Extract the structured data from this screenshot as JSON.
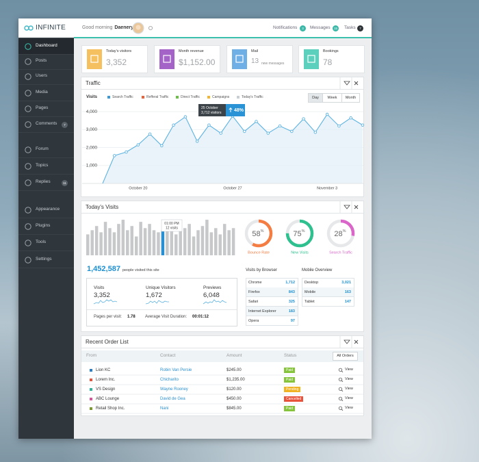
{
  "header": {
    "logo": "INFINITE",
    "greeting": "Good morning",
    "user": "Daenerys",
    "nav": [
      {
        "label": "Notifications",
        "count": "3"
      },
      {
        "label": "Messages",
        "count": "15"
      },
      {
        "label": "Tasks",
        "count": "7"
      }
    ]
  },
  "sidebar": {
    "active": 0,
    "items": [
      {
        "label": "Dashboard"
      },
      {
        "label": "Posts"
      },
      {
        "label": "Users"
      },
      {
        "label": "Media"
      },
      {
        "label": "Pages"
      },
      {
        "label": "Comments",
        "badge": "7"
      },
      {
        "label": "Forum"
      },
      {
        "label": "Topics"
      },
      {
        "label": "Replies",
        "badge": "11"
      },
      {
        "label": "Appearance"
      },
      {
        "label": "Plugins"
      },
      {
        "label": "Tools"
      },
      {
        "label": "Settings"
      }
    ]
  },
  "stats": [
    {
      "label": "Today's visitors",
      "value": "3,352",
      "color": "#f5c160"
    },
    {
      "label": "Month revenue",
      "value": "$1,152.00",
      "color": "#a463c6"
    },
    {
      "label": "Mail",
      "value": "13",
      "note": "new messages",
      "color": "#6eb0e6"
    },
    {
      "label": "Bookings",
      "value": "78",
      "color": "#5ccfbd"
    }
  ],
  "traffic": {
    "title": "Traffic",
    "buttons": [
      "Day",
      "Week",
      "Month"
    ],
    "active_button": 0,
    "chart": {
      "type": "line",
      "y_label": "Visits",
      "legend": [
        {
          "name": "Search Traffic",
          "color": "#3d9ad6"
        },
        {
          "name": "Refferal Traffic",
          "color": "#e8643c"
        },
        {
          "name": "Direct Traffic",
          "color": "#6cc04a"
        },
        {
          "name": "Campaigns",
          "color": "#f2b630"
        },
        {
          "name": "Today's Traffic",
          "color": "#c9ced2"
        }
      ],
      "categories": [
        null,
        null,
        null,
        "October 20",
        null,
        null,
        null,
        null,
        null,
        null,
        null,
        "October 27",
        null,
        null,
        null,
        null,
        null,
        null,
        null,
        "November 3",
        null,
        null,
        null
      ],
      "values": [
        0,
        1550,
        1750,
        2150,
        2750,
        2100,
        3250,
        3712,
        2350,
        3250,
        2800,
        3750,
        2900,
        3450,
        2800,
        3200,
        2900,
        3600,
        2850,
        3850,
        3200,
        3650,
        3250
      ],
      "color": "#5eb3e0",
      "ylim": [
        0,
        4500
      ],
      "yticks": [
        {
          "value": 1000,
          "label": "1,000"
        },
        {
          "value": 2000,
          "label": "2,000"
        },
        {
          "value": 3000,
          "label": "3,000"
        },
        {
          "value": 4000,
          "label": "4,000"
        }
      ],
      "grid": true,
      "tooltip": {
        "date": "25 October",
        "visitors": "3,712 visitors",
        "change": "48%"
      }
    }
  },
  "today": {
    "title": "Today's Visits",
    "chart": {
      "type": "bar",
      "values": [
        10,
        12,
        14,
        11,
        16,
        13,
        11,
        15,
        17,
        12,
        14,
        9,
        16,
        13,
        15,
        12,
        11,
        12,
        17,
        14,
        10,
        16,
        13,
        15,
        9,
        12,
        14,
        17,
        11,
        13,
        10,
        15,
        12,
        13
      ],
      "ylim": [
        0,
        18
      ],
      "color": "#c6c8ca",
      "highlight": 17,
      "highlight_color": "#2a8fd0",
      "tooltip": {
        "time": "01:00 PM",
        "label": "12 visits"
      }
    },
    "unit": "%",
    "gauges": [
      {
        "value": 58,
        "label": "Bounce Rate",
        "color": "#f47d44"
      },
      {
        "value": 75,
        "label": "New Visits",
        "color": "#2fc08f"
      },
      {
        "value": 28,
        "label": "Search Traffic",
        "color": "#d966c8"
      }
    ],
    "total": "1,452,587",
    "total_text": "people visited this site",
    "summary": [
      {
        "label": "Visits",
        "value": "3,352"
      },
      {
        "label": "Unique Visitors",
        "value": "1,672"
      },
      {
        "label": "Previews",
        "value": "6,048"
      }
    ],
    "pages_label": "Pages per visit:",
    "pages_value": "1.78",
    "duration_label": "Average Visit Duration:",
    "duration_value": "00:01:12",
    "browsers": {
      "title": "Visits by Browser",
      "rows": [
        [
          "Chrome",
          "1,712"
        ],
        [
          "Firefox",
          "843"
        ],
        [
          "Safari",
          "325"
        ],
        [
          "Internet Explorer",
          "183"
        ],
        [
          "Opera",
          "97"
        ]
      ]
    },
    "mobile": {
      "title": "Mobile Overview",
      "rows": [
        [
          "Desktop",
          "3,021"
        ],
        [
          "Mobile",
          "163"
        ],
        [
          "Tablet",
          "147"
        ]
      ]
    }
  },
  "orders": {
    "title": "Recent Order List",
    "columns": [
      "From",
      "Contact",
      "Amount",
      "Status"
    ],
    "button": "All Orders",
    "rows": [
      {
        "from": "Lion KC",
        "color": "#2a7fc9",
        "contact": "Robin Van Persie",
        "amount": "$245.00",
        "status": "Paid",
        "status_color": "#86c43c",
        "action": "View"
      },
      {
        "from": "Lorem Inc.",
        "color": "#e8533c",
        "contact": "Chicharito",
        "amount": "$1,235.00",
        "status": "Paid",
        "status_color": "#86c43c",
        "action": "View"
      },
      {
        "from": "VS Design",
        "color": "#2bb59a",
        "contact": "Wayne Rooney",
        "amount": "$120.00",
        "status": "Pending",
        "status_color": "#f0b323",
        "action": "View"
      },
      {
        "from": "ABC Lounge",
        "color": "#d9549b",
        "contact": "David de Gea",
        "amount": "$450.00",
        "status": "Cancelled",
        "status_color": "#e8533c",
        "action": "View"
      },
      {
        "from": "Retail Shop Inc.",
        "color": "#7a9a2a",
        "contact": "Nani",
        "amount": "$845.00",
        "status": "Paid",
        "status_color": "#86c43c",
        "action": "View"
      }
    ]
  }
}
